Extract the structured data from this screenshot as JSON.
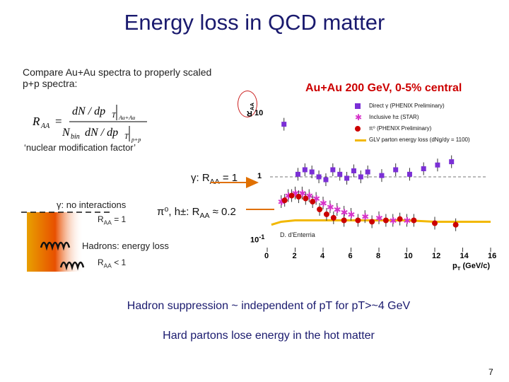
{
  "title": "Energy loss in QCD matter",
  "intro_text": "Compare Au+Au spectra to properly scaled p+p spectra:",
  "formula": {
    "lhs": "R",
    "lhs_sub": "AA",
    "numerator": "dN / dp",
    "numerator_sub": "T",
    "numerator_tag": "Au+Au",
    "denominator_prefix": "N",
    "denominator_prefix_sub": "bin",
    "denominator": "dN / dp",
    "denominator_sub": "T",
    "denominator_tag": "p+p"
  },
  "nuclear_mod_factor": "‘nuclear modification factor’",
  "annotations": {
    "gamma_raa": "γ: R",
    "gamma_raa_sub": "AA",
    "gamma_raa_tail": " = 1",
    "pi_raa": "π⁰, h±: R",
    "pi_raa_sub": "AA",
    "pi_raa_tail": " ≈ 0.2",
    "no_interactions": "γ: no interactions",
    "raa_eq_1": "R",
    "raa_eq_1_sub": "AA",
    "raa_eq_1_tail": " = 1",
    "hadrons": "Hadrons: energy loss",
    "raa_lt_1": "R",
    "raa_lt_1_sub": "AA",
    "raa_lt_1_tail": " < 1"
  },
  "colors": {
    "title": "#1a1a6e",
    "plot_title": "#cc0000",
    "direct_gamma": "#7b2fd6",
    "inclusive_h": "#d633c9",
    "pi0": "#cc0000",
    "glv_curve": "#f2b800",
    "arrow": "#e07000"
  },
  "chart_data": {
    "type": "scatter",
    "title": "Au+Au 200 GeV, 0-5% central",
    "ylabel": "R",
    "ylabel_sub": "AA",
    "xlabel": "p",
    "xlabel_sub": "T",
    "xlabel_unit": " (GeV/c)",
    "yscale": "log",
    "ylim": [
      0.1,
      10
    ],
    "xlim": [
      0,
      16
    ],
    "y_ticks": [
      {
        "v": 10,
        "label": "10"
      },
      {
        "v": 1,
        "label": "1"
      },
      {
        "v": 0.1,
        "label": "10",
        "sup": "-1"
      }
    ],
    "x_ticks": [
      0,
      2,
      4,
      6,
      8,
      10,
      12,
      14,
      16
    ],
    "author": "D. d'Enterria",
    "legend": [
      "Direct γ (PHENIX Preliminary)",
      "Inclusive h± (STAR)",
      "π⁰ (PHENIX Preliminary)",
      "GLV parton energy loss (dNg/dy = 1100)"
    ],
    "series": [
      {
        "name": "Direct gamma",
        "marker": "square",
        "x": [
          1.2,
          2.2,
          2.7,
          3.2,
          3.7,
          4.2,
          4.7,
          5.2,
          5.7,
          6.2,
          6.7,
          7.2,
          8.2,
          9.2,
          10.2,
          11.2,
          12.2,
          13.2
        ],
        "y": [
          7.0,
          1.1,
          1.3,
          1.2,
          1.0,
          0.9,
          1.3,
          1.1,
          0.95,
          1.25,
          1.0,
          1.2,
          1.05,
          1.3,
          1.1,
          1.35,
          1.55,
          1.75
        ]
      },
      {
        "name": "Inclusive h",
        "marker": "star",
        "x": [
          1.0,
          1.5,
          2.0,
          2.5,
          3.0,
          3.5,
          4.0,
          4.5,
          5.0,
          5.5,
          6.0,
          7.0,
          8.0,
          9.0,
          10.0
        ],
        "y": [
          0.4,
          0.5,
          0.55,
          0.55,
          0.5,
          0.45,
          0.38,
          0.33,
          0.3,
          0.27,
          0.25,
          0.23,
          0.22,
          0.2,
          0.2
        ]
      },
      {
        "name": "pi0",
        "marker": "circle",
        "x": [
          1.25,
          1.75,
          2.25,
          2.75,
          3.25,
          3.75,
          4.25,
          4.75,
          5.5,
          6.5,
          7.5,
          8.5,
          9.5,
          10.5,
          12.0,
          13.5
        ],
        "y": [
          0.42,
          0.5,
          0.48,
          0.45,
          0.4,
          0.3,
          0.25,
          0.22,
          0.2,
          0.2,
          0.19,
          0.2,
          0.21,
          0.2,
          0.18,
          0.17
        ]
      }
    ],
    "curve": {
      "name": "GLV parton energy loss",
      "x": [
        0.3,
        1.0,
        2.0,
        3.0,
        4.0,
        5.0,
        6.0,
        8.0,
        10.0,
        12.0,
        14.0,
        16.0
      ],
      "y": [
        0.17,
        0.19,
        0.2,
        0.2,
        0.2,
        0.2,
        0.2,
        0.2,
        0.2,
        0.19,
        0.19,
        0.19
      ]
    }
  },
  "summary_1": "Hadron suppression ~ independent of pT for pT>~4 GeV",
  "summary_2": "Hard partons lose energy in the hot matter",
  "page_number": "7"
}
